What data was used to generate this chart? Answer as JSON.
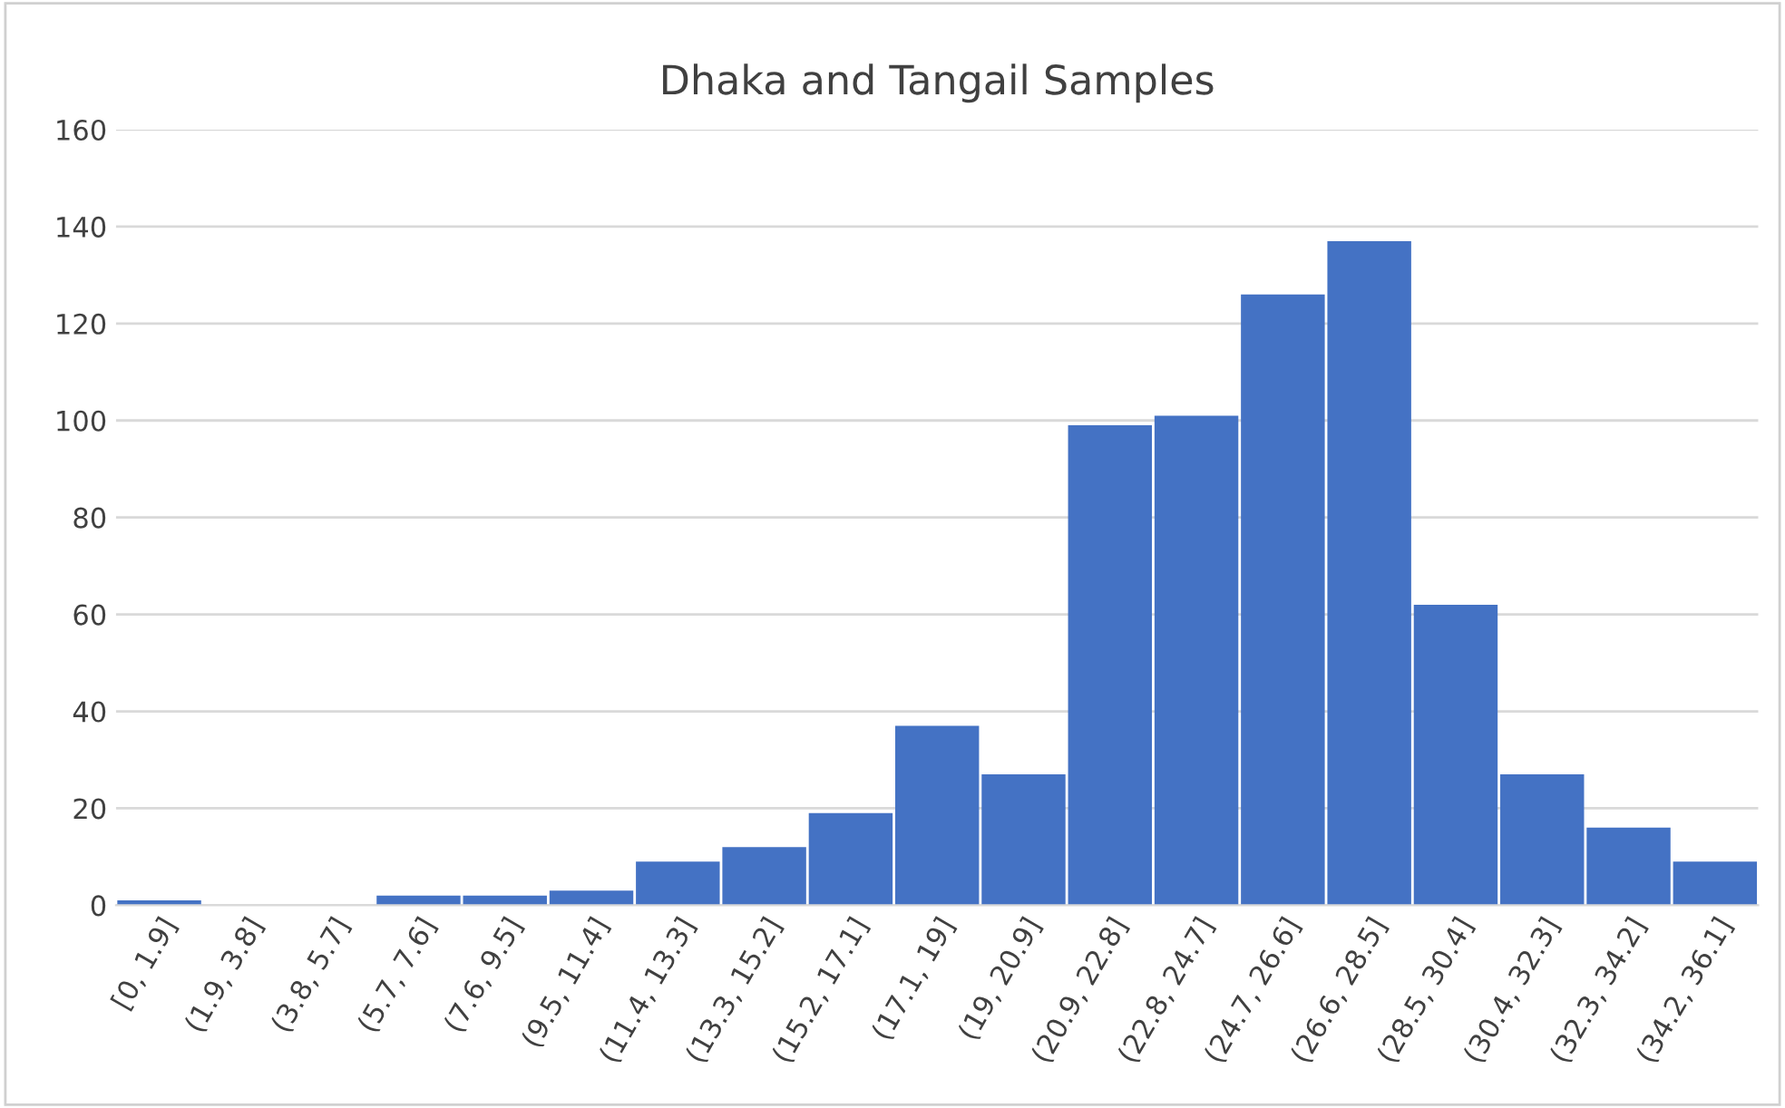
{
  "chart_data": {
    "type": "bar",
    "title": "Dhaka and Tangail Samples",
    "categories": [
      "[0, 1.9]",
      "(1.9, 3.8]",
      "(3.8, 5.7]",
      "(5.7, 7.6]",
      "(7.6, 9.5]",
      "(9.5, 11.4]",
      "(11.4, 13.3]",
      "(13.3, 15.2]",
      "(15.2, 17.1]",
      "(17.1, 19]",
      "(19, 20.9]",
      "(20.9, 22.8]",
      "(22.8, 24.7]",
      "(24.7, 26.6]",
      "(26.6, 28.5]",
      "(28.5, 30.4]",
      "(30.4, 32.3]",
      "(32.3, 34.2]",
      "(34.2, 36.1]"
    ],
    "values": [
      1,
      0,
      0,
      2,
      2,
      3,
      9,
      12,
      19,
      37,
      27,
      99,
      101,
      126,
      137,
      62,
      27,
      16,
      9
    ],
    "color": "#4472c4",
    "ylim": [
      0,
      160
    ],
    "yticks": [
      0,
      20,
      40,
      60,
      80,
      100,
      120,
      140,
      160
    ],
    "grid": "y"
  }
}
